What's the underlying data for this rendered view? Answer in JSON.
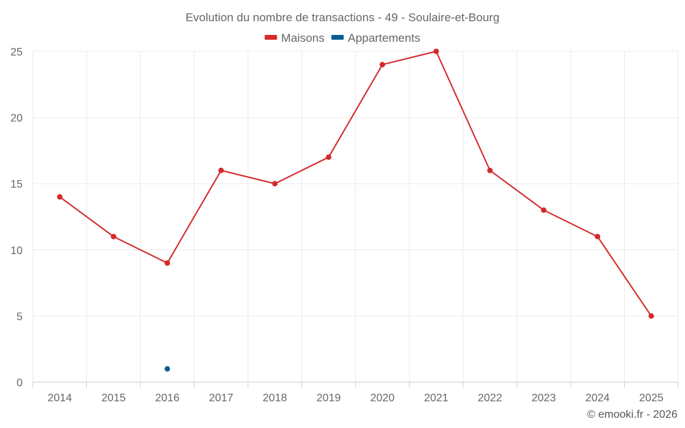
{
  "chart_data": {
    "type": "line",
    "title": "Evolution du nombre de transactions - 49 - Soulaire-et-Bourg",
    "categories": [
      "2014",
      "2015",
      "2016",
      "2017",
      "2018",
      "2019",
      "2020",
      "2021",
      "2022",
      "2023",
      "2024",
      "2025"
    ],
    "series": [
      {
        "name": "Maisons",
        "color": "#d32a2a",
        "values": [
          14,
          11,
          9,
          16,
          15,
          17,
          24,
          25,
          16,
          13,
          11,
          5
        ]
      },
      {
        "name": "Appartements",
        "color": "#0b5e96",
        "values": [
          null,
          null,
          1,
          null,
          null,
          null,
          null,
          null,
          null,
          null,
          null,
          null
        ]
      }
    ],
    "ylim": [
      0,
      25
    ],
    "yticks": [
      0,
      5,
      10,
      15,
      20,
      25
    ],
    "grid": true,
    "legend": "top-center",
    "xlabel": "",
    "ylabel": ""
  },
  "credit": "© emooki.fr - 2026"
}
